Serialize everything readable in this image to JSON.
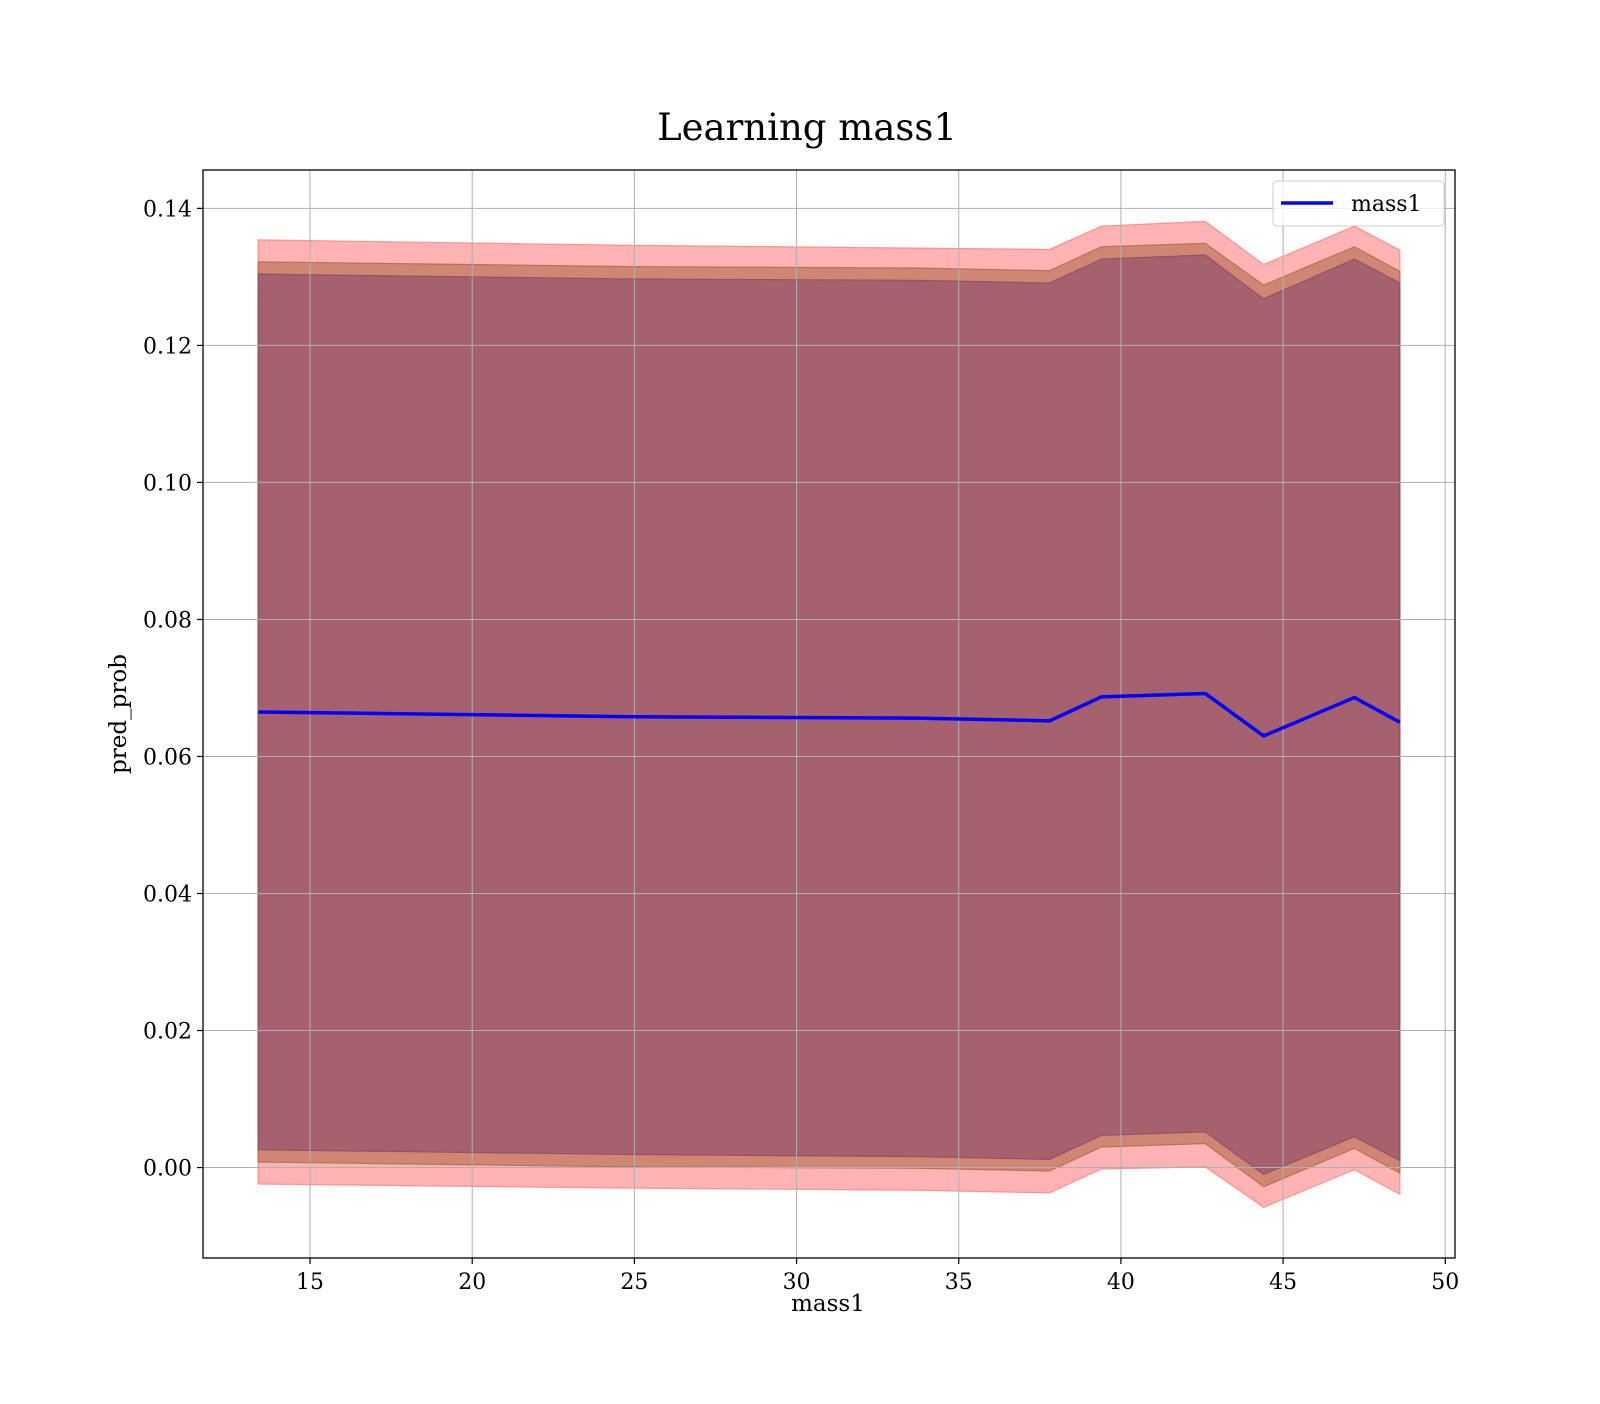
{
  "chart_data": {
    "type": "area",
    "title": "Learning mass1",
    "xlabel": "mass1",
    "ylabel": "pred_prob",
    "xlim": [
      11.7,
      50.3
    ],
    "ylim": [
      -0.0132,
      0.1456
    ],
    "xticks": [
      15,
      20,
      25,
      30,
      35,
      40,
      45,
      50
    ],
    "yticks": [
      0.0,
      0.02,
      0.04,
      0.06,
      0.08,
      0.1,
      0.12,
      0.14
    ],
    "xtick_labels": [
      "15",
      "20",
      "25",
      "30",
      "35",
      "40",
      "45",
      "50"
    ],
    "ytick_labels": [
      "0.00",
      "0.02",
      "0.04",
      "0.06",
      "0.08",
      "0.10",
      "0.12",
      "0.14"
    ],
    "grid": true,
    "legend_position": "upper right",
    "x": [
      13.4,
      24.9,
      33.7,
      37.8,
      39.4,
      42.6,
      44.4,
      47.2,
      48.6
    ],
    "series": [
      {
        "name": "mass1",
        "color": "#0000ff",
        "values": [
          0.0665,
          0.0658,
          0.0656,
          0.0652,
          0.0687,
          0.0692,
          0.063,
          0.0686,
          0.065
        ]
      }
    ],
    "bands": [
      {
        "color": "#ff8080",
        "opacity": 0.6,
        "upper": [
          0.1354,
          0.1346,
          0.1342,
          0.134,
          0.1374,
          0.1381,
          0.1318,
          0.1374,
          0.1339
        ],
        "lower": [
          -0.0024,
          -0.003,
          -0.0033,
          -0.0037,
          -0.0002,
          0.0001,
          -0.0058,
          -0.0003,
          -0.0039
        ]
      },
      {
        "color": "#b06848",
        "opacity": 0.6,
        "upper": [
          0.1322,
          0.1315,
          0.1313,
          0.1309,
          0.1344,
          0.1349,
          0.1288,
          0.1344,
          0.1308
        ],
        "lower": [
          0.0008,
          0.0001,
          -0.0001,
          -0.0005,
          0.003,
          0.0035,
          -0.0028,
          0.0028,
          -0.0008
        ]
      },
      {
        "color": "#8a4a6a",
        "opacity": 0.6,
        "upper": [
          0.1304,
          0.1297,
          0.1295,
          0.1291,
          0.1326,
          0.1332,
          0.1268,
          0.1326,
          0.1291
        ],
        "lower": [
          0.0026,
          0.0019,
          0.0016,
          0.0012,
          0.0047,
          0.0052,
          -0.001,
          0.0045,
          0.001
        ]
      }
    ]
  }
}
